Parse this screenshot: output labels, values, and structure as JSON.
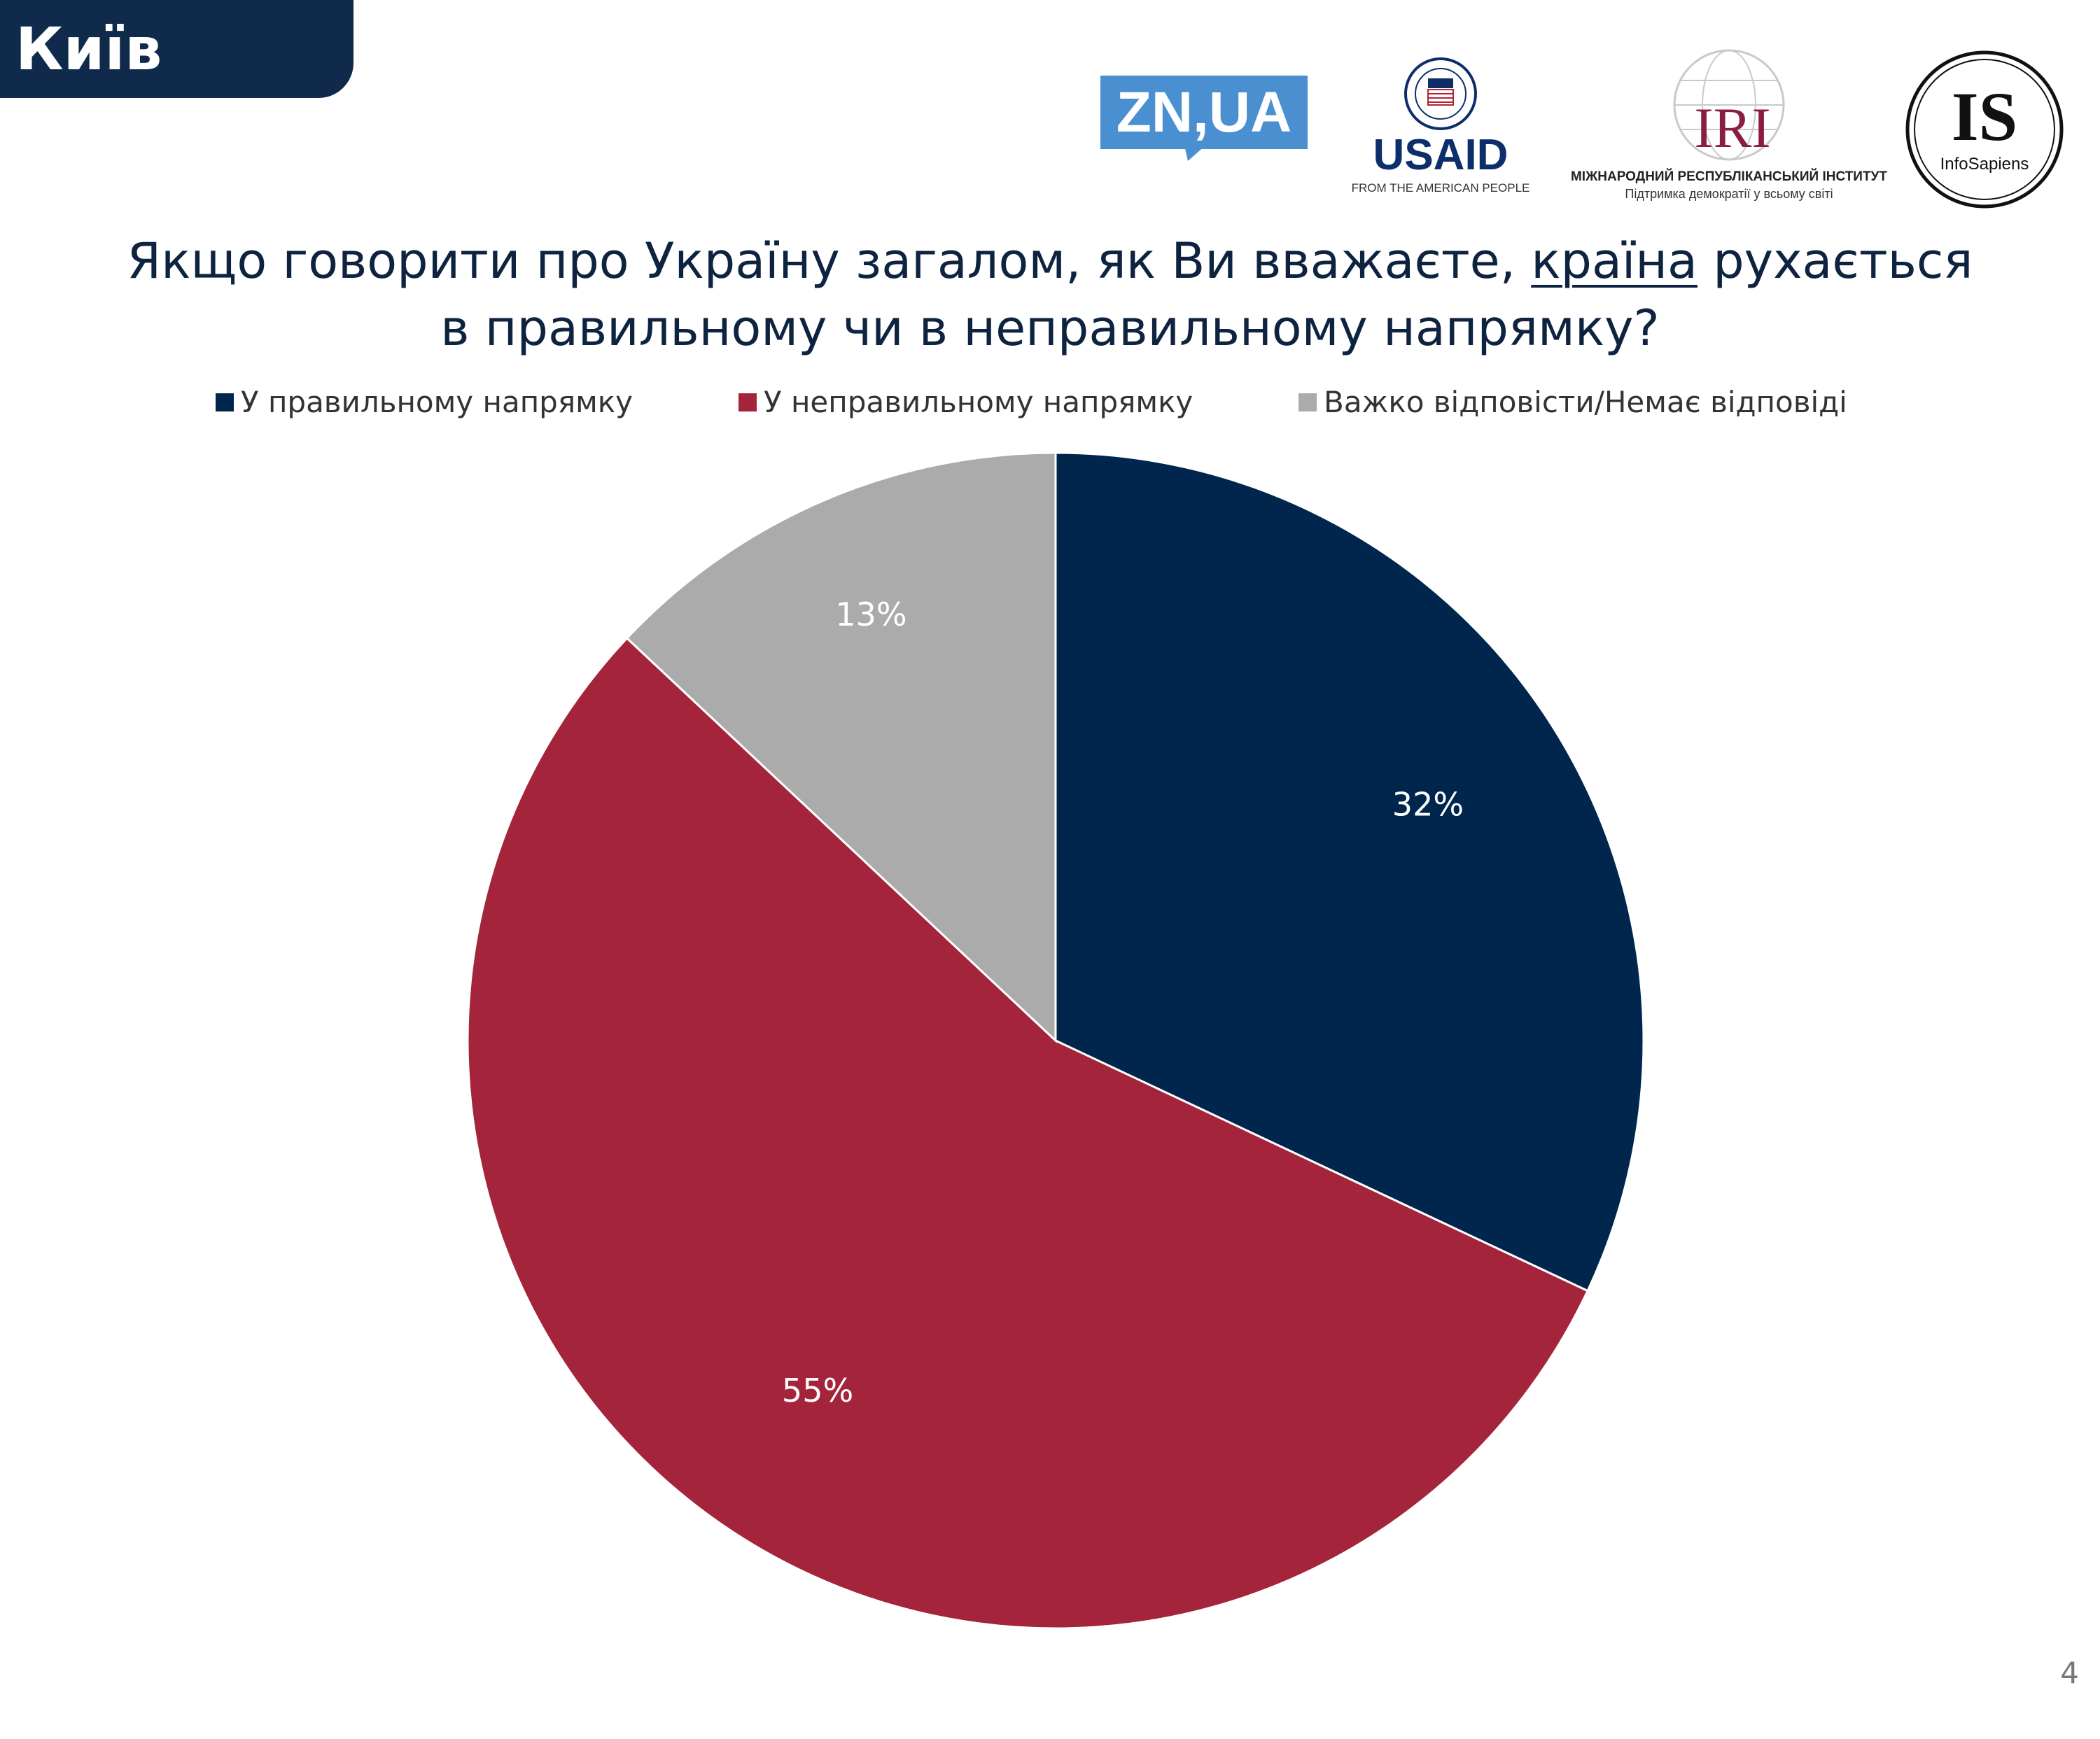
{
  "header": {
    "city": "Київ"
  },
  "logos": {
    "zn": "ZN,UA",
    "usaid_main": "USAID",
    "usaid_sub": "FROM THE AMERICAN PEOPLE",
    "iri_main": "IRI",
    "iri_line1": "МІЖНАРОДНИЙ РЕСПУБЛІКАНСЬКИЙ ІНСТИТУТ",
    "iri_line2": "Підтримка демократії у всьому світі",
    "is_main": "IS",
    "is_sub": "InfoSapiens"
  },
  "chart": {
    "title_part1": "Якщо говорити про Україну загалом, як Ви вважаєте,",
    "title_highlight": "країна",
    "title_part2": "рухається",
    "title_line2": "в правильному чи в неправильному напрямку?"
  },
  "chart_data": {
    "type": "pie",
    "categories": [
      "У правильному напрямку",
      "У неправильному напрямку",
      "Важко відповісти/Немає відповіді"
    ],
    "values": [
      32,
      55,
      13
    ],
    "labels": [
      "32%",
      "55%",
      "13%"
    ],
    "colors": [
      "#00264d",
      "#a3243b",
      "#ababab"
    ],
    "legend_position": "top"
  },
  "page_number": "4"
}
